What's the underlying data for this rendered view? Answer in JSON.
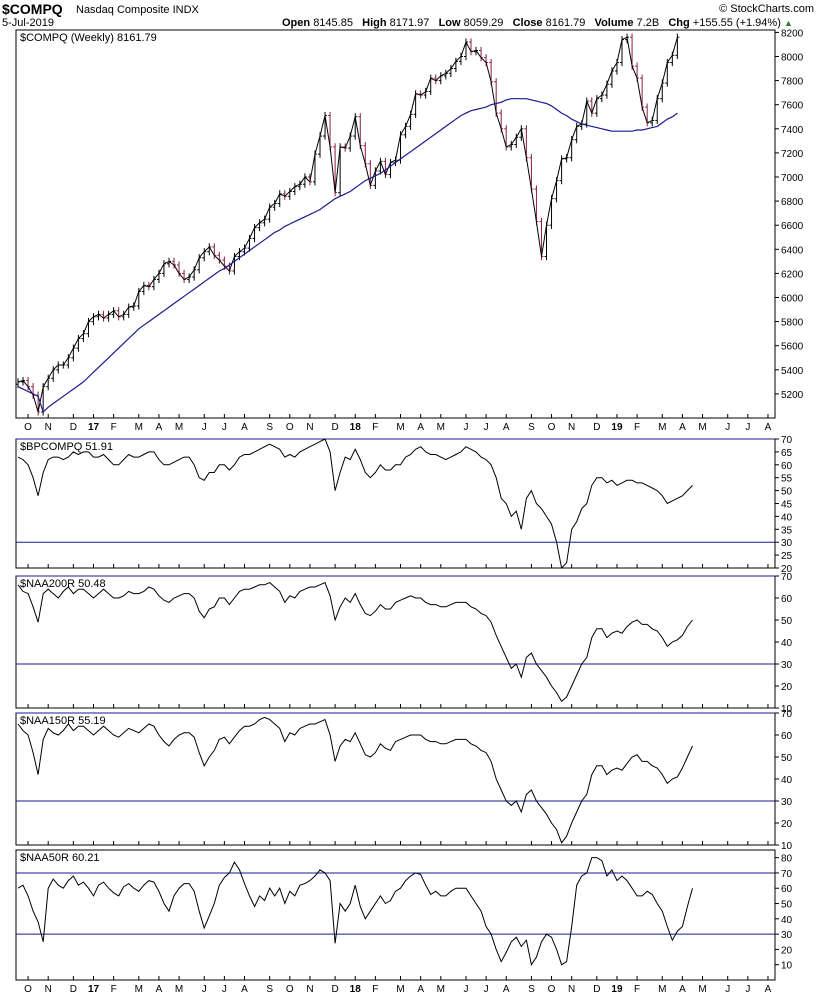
{
  "header": {
    "symbol": "$COMPQ",
    "name": "Nasdaq Composite INDX",
    "date": "5-Jul-2019",
    "credit": "© StockCharts.com",
    "open_label": "Open",
    "open": "8145.85",
    "high_label": "High",
    "high": "8171.97",
    "low_label": "Low",
    "low": "8059.29",
    "close_label": "Close",
    "close": "8161.79",
    "volume_label": "Volume",
    "volume": "7.2B",
    "chg_label": "Chg",
    "chg": "+155.55 (+1.94%)",
    "chg_arrow": "▲"
  },
  "colors": {
    "up": "#000000",
    "down": "#8b1a4a",
    "ma": "#1a1a8c",
    "hline": "#1a1a8c",
    "indicator": "#000000"
  },
  "x_axis": {
    "ticks": [
      {
        "label": "O",
        "w": 2
      },
      {
        "label": "N",
        "w": 6
      },
      {
        "label": "D",
        "w": 11
      },
      {
        "label": "17",
        "w": 15,
        "bold": true
      },
      {
        "label": "F",
        "w": 19
      },
      {
        "label": "M",
        "w": 24
      },
      {
        "label": "A",
        "w": 28
      },
      {
        "label": "M",
        "w": 32
      },
      {
        "label": "J",
        "w": 37
      },
      {
        "label": "J",
        "w": 41
      },
      {
        "label": "A",
        "w": 45
      },
      {
        "label": "S",
        "w": 50
      },
      {
        "label": "O",
        "w": 54
      },
      {
        "label": "N",
        "w": 58
      },
      {
        "label": "D",
        "w": 63
      },
      {
        "label": "18",
        "w": 67,
        "bold": true
      },
      {
        "label": "F",
        "w": 71
      },
      {
        "label": "M",
        "w": 76
      },
      {
        "label": "A",
        "w": 80
      },
      {
        "label": "M",
        "w": 84
      },
      {
        "label": "J",
        "w": 89
      },
      {
        "label": "J",
        "w": 93
      },
      {
        "label": "A",
        "w": 97
      },
      {
        "label": "S",
        "w": 102
      },
      {
        "label": "O",
        "w": 106
      },
      {
        "label": "N",
        "w": 110
      },
      {
        "label": "D",
        "w": 115
      },
      {
        "label": "19",
        "w": 119,
        "bold": true
      },
      {
        "label": "F",
        "w": 123
      },
      {
        "label": "M",
        "w": 128
      },
      {
        "label": "A",
        "w": 132
      },
      {
        "label": "M",
        "w": 136
      },
      {
        "label": "J",
        "w": 141
      },
      {
        "label": "J",
        "w": 145
      },
      {
        "label": "A",
        "w": 149
      }
    ]
  },
  "chart_data": [
    {
      "type": "ohlc",
      "title": "$COMPQ (Weekly) 8161.79",
      "x_unit": "weeks since late Sep 2016",
      "ylim": [
        5000,
        8220
      ],
      "y_ticks": [
        5200,
        5400,
        5600,
        5800,
        6000,
        6200,
        6400,
        6600,
        6800,
        7000,
        7200,
        7400,
        7600,
        7800,
        8000,
        8200
      ],
      "close": [
        5300,
        5310,
        5260,
        5190,
        5050,
        5260,
        5330,
        5400,
        5440,
        5440,
        5500,
        5580,
        5660,
        5700,
        5800,
        5840,
        5860,
        5830,
        5860,
        5890,
        5840,
        5860,
        5920,
        5930,
        6050,
        6100,
        6090,
        6150,
        6200,
        6280,
        6300,
        6270,
        6200,
        6150,
        6170,
        6230,
        6330,
        6380,
        6420,
        6350,
        6310,
        6260,
        6220,
        6340,
        6380,
        6410,
        6490,
        6580,
        6620,
        6650,
        6750,
        6780,
        6860,
        6840,
        6880,
        6920,
        6940,
        7000,
        6960,
        7190,
        7340,
        7510,
        7250,
        6870,
        7250,
        7240,
        7340,
        7500,
        7260,
        7110,
        6930,
        7050,
        7130,
        7020,
        7120,
        7140,
        7350,
        7420,
        7520,
        7690,
        7680,
        7710,
        7820,
        7800,
        7840,
        7860,
        7900,
        7960,
        8000,
        8120,
        8040,
        8050,
        7990,
        7950,
        7790,
        7530,
        7400,
        7250,
        7270,
        7330,
        7400,
        7160,
        6900,
        6630,
        6340,
        6600,
        6820,
        6970,
        7150,
        7160,
        7310,
        7420,
        7440,
        7630,
        7530,
        7650,
        7680,
        7770,
        7880,
        7950,
        8140,
        8160,
        7920,
        7820,
        7580,
        7450,
        7470,
        7650,
        7780,
        7950,
        8010,
        8160
      ],
      "ma_name": "40-week MA",
      "ma": [
        5260,
        5240,
        5220,
        5200,
        5180,
        5050,
        5090,
        5120,
        5150,
        5180,
        5210,
        5240,
        5270,
        5300,
        5340,
        5380,
        5420,
        5460,
        5500,
        5540,
        5580,
        5620,
        5660,
        5700,
        5740,
        5770,
        5800,
        5830,
        5860,
        5890,
        5920,
        5950,
        5980,
        6010,
        6040,
        6070,
        6100,
        6130,
        6160,
        6190,
        6220,
        6240,
        6270,
        6300,
        6330,
        6360,
        6390,
        6420,
        6450,
        6480,
        6510,
        6540,
        6560,
        6590,
        6610,
        6630,
        6650,
        6670,
        6690,
        6710,
        6730,
        6760,
        6790,
        6820,
        6840,
        6860,
        6880,
        6910,
        6940,
        6970,
        6990,
        7010,
        7030,
        7060,
        7090,
        7120,
        7150,
        7180,
        7210,
        7240,
        7270,
        7300,
        7330,
        7360,
        7390,
        7420,
        7450,
        7480,
        7510,
        7530,
        7550,
        7560,
        7570,
        7580,
        7600,
        7610,
        7620,
        7640,
        7650,
        7650,
        7650,
        7650,
        7640,
        7630,
        7620,
        7610,
        7590,
        7560,
        7530,
        7510,
        7480,
        7460,
        7440,
        7430,
        7420,
        7410,
        7400,
        7390,
        7380,
        7380,
        7380,
        7380,
        7380,
        7390,
        7390,
        7400,
        7410,
        7420,
        7450,
        7480,
        7500,
        7530
      ]
    },
    {
      "type": "line",
      "title": "$BPCOMPQ 51.91",
      "ylim": [
        20,
        70
      ],
      "y_ticks": [
        20,
        25,
        30,
        35,
        40,
        45,
        50,
        55,
        60,
        65,
        70
      ],
      "hlines": [
        70,
        30
      ],
      "values": [
        63,
        62,
        60,
        55,
        48,
        57,
        62,
        63,
        63,
        62,
        63,
        65,
        64,
        65,
        65,
        63,
        63,
        64,
        62,
        60,
        60,
        62,
        64,
        63,
        63,
        64,
        65,
        65,
        62,
        60,
        60,
        61,
        62,
        63,
        63,
        60,
        55,
        54,
        57,
        57,
        60,
        60,
        58,
        60,
        63,
        64,
        64,
        65,
        66,
        67,
        68,
        67,
        66,
        63,
        64,
        63,
        65,
        66,
        67,
        68,
        69,
        70,
        65,
        50,
        57,
        63,
        62,
        66,
        62,
        57,
        55,
        57,
        60,
        58,
        58,
        60,
        60,
        63,
        64,
        66,
        67,
        65,
        64,
        64,
        63,
        62,
        63,
        64,
        65,
        67,
        66,
        65,
        63,
        62,
        60,
        55,
        47,
        45,
        40,
        42,
        35,
        47,
        50,
        45,
        43,
        40,
        37,
        30,
        20,
        22,
        35,
        38,
        43,
        45,
        52,
        55,
        55,
        53,
        54,
        52,
        53,
        54,
        54,
        53,
        53,
        52,
        51,
        50,
        48,
        45,
        46,
        47,
        48,
        50,
        52
      ]
    },
    {
      "type": "line",
      "title": "$NAA200R 50.48",
      "ylim": [
        10,
        70
      ],
      "y_ticks": [
        10,
        20,
        30,
        40,
        50,
        60,
        70
      ],
      "hlines": [
        70,
        30
      ],
      "values": [
        66,
        63,
        62,
        56,
        49,
        62,
        64,
        62,
        60,
        63,
        65,
        62,
        64,
        64,
        62,
        60,
        62,
        64,
        62,
        60,
        60,
        61,
        63,
        62,
        62,
        63,
        65,
        64,
        61,
        59,
        58,
        60,
        61,
        62,
        62,
        60,
        54,
        51,
        55,
        56,
        60,
        60,
        57,
        60,
        63,
        64,
        64,
        65,
        66,
        66,
        67,
        65,
        63,
        58,
        61,
        60,
        63,
        64,
        65,
        65,
        66,
        67,
        61,
        50,
        56,
        60,
        58,
        62,
        57,
        53,
        52,
        54,
        57,
        55,
        55,
        58,
        59,
        60,
        61,
        60,
        60,
        58,
        57,
        57,
        56,
        56,
        57,
        58,
        58,
        58,
        56,
        55,
        53,
        52,
        49,
        43,
        38,
        33,
        28,
        30,
        24,
        33,
        35,
        30,
        27,
        24,
        20,
        17,
        13,
        15,
        20,
        25,
        30,
        33,
        42,
        46,
        46,
        42,
        44,
        45,
        44,
        47,
        49,
        50,
        48,
        48,
        46,
        45,
        42,
        38,
        40,
        41,
        43,
        47,
        50
      ]
    },
    {
      "type": "line",
      "title": "$NAA150R 55.19",
      "ylim": [
        10,
        70
      ],
      "y_ticks": [
        10,
        20,
        30,
        40,
        50,
        60,
        70
      ],
      "hlines": [
        70,
        30
      ],
      "values": [
        65,
        62,
        60,
        52,
        42,
        58,
        63,
        61,
        60,
        62,
        65,
        62,
        64,
        64,
        62,
        60,
        62,
        64,
        62,
        60,
        59,
        61,
        63,
        62,
        61,
        63,
        65,
        64,
        60,
        57,
        55,
        58,
        60,
        61,
        61,
        59,
        52,
        46,
        50,
        53,
        58,
        59,
        56,
        59,
        62,
        64,
        64,
        65,
        67,
        68,
        67,
        65,
        63,
        57,
        61,
        60,
        63,
        64,
        65,
        65,
        66,
        67,
        60,
        48,
        55,
        58,
        57,
        61,
        56,
        51,
        50,
        52,
        56,
        54,
        53,
        57,
        58,
        59,
        60,
        60,
        60,
        58,
        57,
        57,
        56,
        56,
        57,
        58,
        58,
        58,
        56,
        55,
        53,
        52,
        48,
        40,
        35,
        30,
        28,
        30,
        25,
        33,
        35,
        30,
        27,
        24,
        20,
        17,
        11,
        14,
        20,
        25,
        30,
        33,
        42,
        46,
        46,
        42,
        44,
        45,
        44,
        47,
        50,
        51,
        48,
        48,
        46,
        45,
        42,
        38,
        40,
        41,
        45,
        50,
        55
      ]
    },
    {
      "type": "line",
      "title": "$NAA50R 60.21",
      "ylim": [
        0,
        85
      ],
      "y_ticks": [
        10,
        20,
        30,
        40,
        50,
        60,
        70,
        80
      ],
      "hlines": [
        70,
        30
      ],
      "values": [
        60,
        62,
        55,
        45,
        38,
        25,
        60,
        66,
        62,
        60,
        65,
        68,
        62,
        64,
        60,
        55,
        62,
        64,
        60,
        57,
        55,
        61,
        63,
        60,
        58,
        62,
        65,
        64,
        58,
        50,
        45,
        55,
        60,
        63,
        63,
        58,
        45,
        34,
        42,
        50,
        62,
        67,
        70,
        77,
        72,
        63,
        55,
        48,
        55,
        52,
        60,
        55,
        60,
        50,
        58,
        55,
        62,
        63,
        65,
        68,
        72,
        70,
        65,
        24,
        50,
        45,
        50,
        62,
        48,
        40,
        45,
        50,
        55,
        50,
        52,
        58,
        60,
        65,
        68,
        70,
        69,
        62,
        56,
        58,
        55,
        55,
        58,
        60,
        60,
        60,
        55,
        50,
        45,
        35,
        30,
        20,
        12,
        18,
        25,
        28,
        22,
        26,
        10,
        15,
        25,
        30,
        28,
        20,
        10,
        12,
        35,
        62,
        68,
        70,
        80,
        80,
        78,
        68,
        72,
        65,
        68,
        65,
        60,
        55,
        55,
        58,
        56,
        50,
        45,
        35,
        26,
        32,
        35,
        48,
        60
      ]
    }
  ]
}
